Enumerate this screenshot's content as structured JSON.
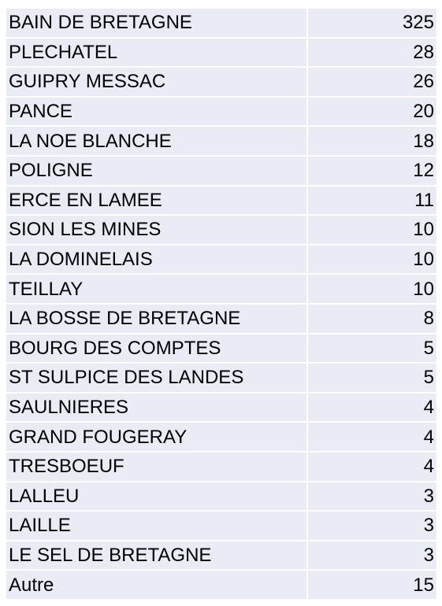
{
  "table": {
    "rows": [
      {
        "name": "BAIN DE BRETAGNE",
        "count": "325"
      },
      {
        "name": "PLECHATEL",
        "count": "28"
      },
      {
        "name": "GUIPRY MESSAC",
        "count": "26"
      },
      {
        "name": "PANCE",
        "count": "20"
      },
      {
        "name": "LA NOE BLANCHE",
        "count": "18"
      },
      {
        "name": "POLIGNE",
        "count": "12"
      },
      {
        "name": "ERCE EN LAMEE",
        "count": "11"
      },
      {
        "name": "SION LES MINES",
        "count": "10"
      },
      {
        "name": "LA DOMINELAIS",
        "count": "10"
      },
      {
        "name": "TEILLAY",
        "count": "10"
      },
      {
        "name": "LA BOSSE DE BRETAGNE",
        "count": "8"
      },
      {
        "name": "BOURG DES COMPTES",
        "count": "5"
      },
      {
        "name": "ST SULPICE DES LANDES",
        "count": "5"
      },
      {
        "name": "SAULNIERES",
        "count": "4"
      },
      {
        "name": "GRAND FOUGERAY",
        "count": "4"
      },
      {
        "name": "TRESBOEUF",
        "count": "4"
      },
      {
        "name": "LALLEU",
        "count": "3"
      },
      {
        "name": "LAILLE",
        "count": "3"
      },
      {
        "name": "LE SEL DE BRETAGNE",
        "count": "3"
      },
      {
        "name": "Autre",
        "count": "15"
      }
    ]
  }
}
